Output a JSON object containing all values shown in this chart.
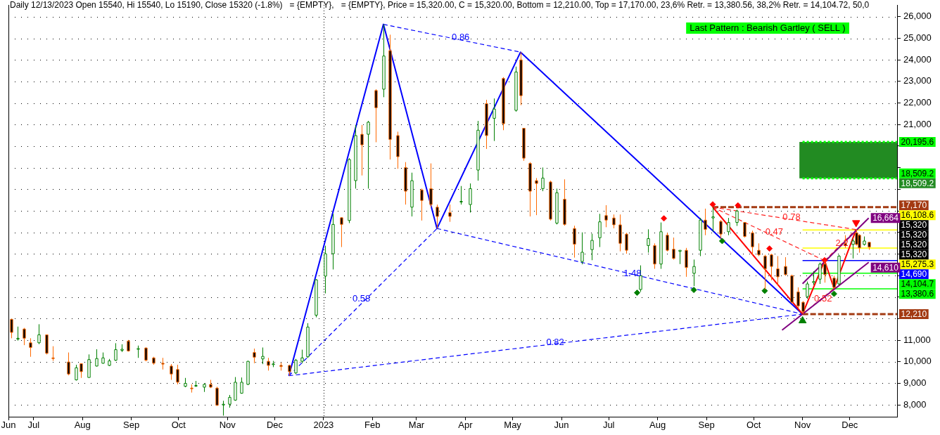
{
  "chart_data": {
    "type": "candlestick",
    "title": "Daily 12/13/2023 Open 15540, Hi 15540, Lo 15190, Close 15320 (-1.8%)   = {EMPTY},   = {EMPTY}, Price = 15,320.00, C = 15,320.00, Bottom = 12,210.00, Top = 17,170.00, 23,6% Retr. = 13,380.56, 38,2% Retr. = 14,104.72, 50,0",
    "x": [
      "2022-06-17",
      "2022-06-21",
      "2022-06-25",
      "2022-06-29",
      "2022-07-04",
      "2022-07-09",
      "2022-07-13",
      "2022-07-23",
      "2022-07-28",
      "2022-07-31",
      "2022-08-05",
      "2022-08-10",
      "2022-08-14",
      "2022-08-18",
      "2022-08-22",
      "2022-08-26",
      "2022-08-30",
      "2022-09-05",
      "2022-09-10",
      "2022-09-15",
      "2022-09-21",
      "2022-09-26",
      "2022-09-30",
      "2022-10-05",
      "2022-10-09",
      "2022-10-12",
      "2022-10-17",
      "2022-10-21",
      "2022-10-25",
      "2022-10-29",
      "2022-11-02",
      "2022-11-06",
      "2022-11-10",
      "2022-11-14",
      "2022-11-18",
      "2022-11-23",
      "2022-11-27",
      "2022-11-30",
      "2022-12-05",
      "2022-12-10",
      "2022-12-14",
      "2022-12-18",
      "2022-12-22",
      "2022-12-27",
      "2023-01-02",
      "2023-01-07",
      "2023-01-12",
      "2023-01-17",
      "2023-01-21",
      "2023-01-25",
      "2023-01-29",
      "2023-02-03",
      "2023-02-08",
      "2023-02-12",
      "2023-02-17",
      "2023-02-22",
      "2023-02-26",
      "2023-03-04",
      "2023-03-10",
      "2023-03-14",
      "2023-03-22",
      "2023-03-29",
      "2023-04-04",
      "2023-04-09",
      "2023-04-14",
      "2023-04-19",
      "2023-04-25",
      "2023-05-03",
      "2023-05-06",
      "2023-05-08",
      "2023-05-12",
      "2023-05-16",
      "2023-05-20",
      "2023-05-25",
      "2023-05-29",
      "2023-06-03",
      "2023-06-09",
      "2023-06-14",
      "2023-06-20",
      "2023-06-25",
      "2023-06-29",
      "2023-07-04",
      "2023-07-08",
      "2023-07-12",
      "2023-07-21",
      "2023-07-26",
      "2023-07-30",
      "2023-08-03",
      "2023-08-07",
      "2023-08-11",
      "2023-08-15",
      "2023-08-19",
      "2023-08-24",
      "2023-08-28",
      "2023-08-31",
      "2023-09-05",
      "2023-09-10",
      "2023-09-15",
      "2023-09-20",
      "2023-09-25",
      "2023-09-30",
      "2023-10-04",
      "2023-10-08",
      "2023-10-12",
      "2023-10-16",
      "2023-10-21",
      "2023-10-25",
      "2023-10-29",
      "2023-11-01",
      "2023-11-04",
      "2023-11-08",
      "2023-11-12",
      "2023-11-15",
      "2023-11-21",
      "2023-11-24",
      "2023-11-28",
      "2023-12-03",
      "2023-12-05",
      "2023-12-07",
      "2023-12-10",
      "2023-12-13"
    ],
    "ohlc": [
      [
        11970,
        12000,
        11090,
        11360
      ],
      [
        11050,
        11630,
        10980,
        11090
      ],
      [
        11520,
        11570,
        10770,
        11090
      ],
      [
        10880,
        11090,
        10230,
        10660
      ],
      [
        10880,
        11740,
        10820,
        11250
      ],
      [
        11250,
        11250,
        10340,
        10390
      ],
      [
        10180,
        10720,
        10040,
        10150
      ],
      [
        9990,
        10430,
        9370,
        9430
      ],
      [
        9160,
        9860,
        9130,
        9720
      ],
      [
        9910,
        9930,
        9250,
        9540
      ],
      [
        9270,
        10340,
        9270,
        10100
      ],
      [
        9800,
        10580,
        9780,
        10150
      ],
      [
        9930,
        10430,
        9910,
        10180
      ],
      [
        9830,
        10130,
        9800,
        10040
      ],
      [
        10070,
        10860,
        10040,
        10560
      ],
      [
        10530,
        10810,
        10450,
        10580
      ],
      [
        10960,
        11010,
        10470,
        10500
      ],
      [
        10580,
        10750,
        10180,
        10610
      ],
      [
        10640,
        10660,
        10020,
        10070
      ],
      [
        10180,
        10230,
        9860,
        9930
      ],
      [
        9930,
        10180,
        9640,
        9890
      ],
      [
        9800,
        9890,
        9160,
        9430
      ],
      [
        9640,
        9860,
        8950,
        9050
      ],
      [
        8860,
        9250,
        8820,
        9000
      ],
      [
        8780,
        8950,
        8570,
        8750
      ],
      [
        8890,
        9110,
        8840,
        8900
      ],
      [
        8820,
        9000,
        8600,
        8950
      ],
      [
        8950,
        9160,
        8780,
        8820
      ],
      [
        8780,
        8840,
        7960,
        7980
      ],
      [
        8000,
        8190,
        7500,
        8030
      ],
      [
        8030,
        8460,
        7870,
        8350
      ],
      [
        8220,
        9290,
        8190,
        9050
      ],
      [
        8540,
        9270,
        8520,
        9050
      ],
      [
        8950,
        10040,
        8920,
        10020
      ],
      [
        10430,
        10610,
        9930,
        10210
      ],
      [
        10130,
        10660,
        9890,
        10250
      ],
      [
        10020,
        10180,
        9590,
        9830
      ],
      [
        9890,
        10040,
        9750,
        9900
      ],
      [
        9830,
        9960,
        9590,
        9780
      ],
      [
        9830,
        9860,
        9350,
        9540
      ],
      [
        9480,
        10130,
        9430,
        10070
      ],
      [
        10020,
        10560,
        9930,
        10180
      ],
      [
        10230,
        11790,
        10180,
        11610
      ],
      [
        12160,
        13830,
        12060,
        13800
      ],
      [
        13970,
        15380,
        13170,
        15010
      ],
      [
        15010,
        16860,
        14280,
        16370
      ],
      [
        16680,
        16700,
        15320,
        16370
      ],
      [
        16550,
        19440,
        16430,
        19380
      ],
      [
        18400,
        20980,
        18030,
        20490
      ],
      [
        20550,
        20980,
        18640,
        20060
      ],
      [
        20550,
        21170,
        18030,
        21110
      ],
      [
        22580,
        22640,
        20180,
        21780
      ],
      [
        22640,
        25650,
        22270,
        24180
      ],
      [
        24430,
        25170,
        19380,
        20310
      ],
      [
        20490,
        20670,
        18950,
        19510
      ],
      [
        19010,
        19260,
        17290,
        17910
      ],
      [
        17170,
        18770,
        16740,
        18400
      ],
      [
        17970,
        18030,
        16550,
        17480
      ],
      [
        18030,
        19200,
        17170,
        17290
      ],
      [
        17170,
        17290,
        16180,
        16740
      ],
      [
        16920,
        17290,
        16490,
        16740
      ],
      [
        17410,
        18150,
        17290,
        17440
      ],
      [
        17290,
        18270,
        16920,
        18030
      ],
      [
        18890,
        21170,
        18400,
        20740
      ],
      [
        21970,
        22150,
        19870,
        20490
      ],
      [
        21290,
        22210,
        20240,
        21720
      ],
      [
        23140,
        23200,
        20740,
        21040
      ],
      [
        21660,
        23690,
        21600,
        23440
      ],
      [
        24000,
        24360,
        21900,
        22340
      ],
      [
        20830,
        20830,
        19320,
        19440
      ],
      [
        19200,
        19260,
        16740,
        17910
      ],
      [
        18400,
        18520,
        16800,
        18270
      ],
      [
        18030,
        19010,
        17910,
        18520
      ],
      [
        18340,
        18400,
        16550,
        16610
      ],
      [
        16430,
        18030,
        16370,
        17840
      ],
      [
        17540,
        18460,
        16310,
        16370
      ],
      [
        16180,
        16310,
        14830,
        15450
      ],
      [
        14650,
        16000,
        14520,
        15080
      ],
      [
        15200,
        15940,
        14710,
        15630
      ],
      [
        15750,
        16860,
        15320,
        16490
      ],
      [
        16780,
        17260,
        16240,
        16570
      ],
      [
        16670,
        16830,
        16190,
        16350
      ],
      [
        16350,
        16830,
        15120,
        15490
      ],
      [
        15920,
        15980,
        15010,
        15170
      ],
      [
        13350,
        14470,
        13240,
        13990
      ],
      [
        15390,
        16140,
        15060,
        15710
      ],
      [
        15390,
        15490,
        14310,
        14530
      ],
      [
        14530,
        16460,
        14310,
        16030
      ],
      [
        15870,
        15980,
        15120,
        15170
      ],
      [
        15220,
        15760,
        14740,
        14790
      ],
      [
        15120,
        15170,
        14530,
        15170
      ],
      [
        15170,
        15280,
        13940,
        14370
      ],
      [
        14100,
        14740,
        13510,
        14420
      ],
      [
        15170,
        16670,
        14900,
        16570
      ],
      [
        16570,
        17100,
        15870,
        16140
      ],
      [
        16670,
        17170,
        16030,
        16720
      ],
      [
        16510,
        16570,
        15710,
        15920
      ],
      [
        16030,
        16670,
        15870,
        16460
      ],
      [
        16460,
        17050,
        16300,
        16990
      ],
      [
        16460,
        16460,
        15760,
        15810
      ],
      [
        15980,
        16080,
        14960,
        15330
      ],
      [
        15170,
        15490,
        14900,
        14960
      ],
      [
        14900,
        14960,
        13350,
        14310
      ],
      [
        14960,
        15010,
        13780,
        14420
      ],
      [
        14310,
        14900,
        13560,
        13940
      ],
      [
        14420,
        14850,
        13990,
        14040
      ],
      [
        13990,
        14040,
        12700,
        12760
      ],
      [
        13240,
        13450,
        12490,
        12590
      ],
      [
        12760,
        12810,
        12210,
        12330
      ],
      [
        13020,
        13720,
        12920,
        13610
      ],
      [
        13670,
        14200,
        13560,
        13720
      ],
      [
        13830,
        14600,
        13610,
        14530
      ],
      [
        14530,
        14690,
        13670,
        14040
      ],
      [
        13880,
        13990,
        13400,
        13450
      ],
      [
        13610,
        14960,
        13560,
        14900
      ],
      [
        15490,
        15870,
        15280,
        15390
      ],
      [
        15440,
        15710,
        14790,
        15600
      ],
      [
        15980,
        16130,
        15390,
        15440
      ],
      [
        15870,
        15920,
        15060,
        15280
      ],
      [
        15440,
        15810,
        15390,
        15600
      ],
      [
        15540,
        15540,
        15190,
        15320
      ]
    ],
    "series": [
      {
        "type": "line",
        "color": "#00ff00",
        "line_style": "dotted",
        "x": [
          "2023-11-01",
          "2023-12-31"
        ],
        "values": [
          20195.6,
          20195.6
        ],
        "value_labels": [
          null,
          "20,195.6"
        ]
      },
      {
        "type": "line",
        "color": "#00ff00",
        "line_style": "dotted",
        "x": [
          "2023-11-01",
          "2023-12-31"
        ],
        "values": [
          18509.2,
          18509.2
        ],
        "value_labels": [
          null,
          "18,509.2"
        ]
      },
      {
        "type": "line",
        "color": "#a33a12",
        "line_style": "dashed",
        "x": [
          "2023-09-05",
          "2023-12-31"
        ],
        "values": [
          17170,
          17170
        ],
        "value_labels": [
          null,
          "17,170"
        ]
      },
      {
        "type": "line",
        "color": "#ffff00",
        "line_style": "solid",
        "x": [
          "2023-11-01",
          "2023-12-31"
        ],
        "values": [
          16108.6,
          16108.6
        ],
        "value_labels": [
          null,
          "16,108.6"
        ]
      },
      {
        "type": "line",
        "color": "#ffff00",
        "line_style": "solid",
        "x": [
          "2023-11-01",
          "2023-12-31"
        ],
        "values": [
          15275.3,
          15275.3
        ],
        "value_labels": [
          null,
          "15,275.3"
        ]
      },
      {
        "type": "line",
        "color": "#0000ff",
        "line_style": "solid",
        "x": [
          "2023-11-01",
          "2023-12-31"
        ],
        "values": [
          14690,
          14690
        ],
        "value_labels": [
          null,
          "14,690"
        ]
      },
      {
        "type": "line",
        "color": "#00ff00",
        "line_style": "solid",
        "x": [
          "2023-11-01",
          "2023-12-31"
        ],
        "values": [
          14104.7,
          14104.7
        ],
        "value_labels": [
          null,
          "14,104.7"
        ]
      },
      {
        "type": "line",
        "color": "#00ff00",
        "line_style": "solid",
        "x": [
          "2023-11-01",
          "2023-12-31"
        ],
        "values": [
          13380.6,
          13380.6
        ],
        "value_labels": [
          null,
          "13,380.6"
        ]
      },
      {
        "type": "line",
        "color": "#a33a12",
        "line_style": "dashed",
        "x": [
          "2023-11-01",
          "2023-12-31"
        ],
        "values": [
          12210,
          12210
        ],
        "value_labels": [
          null,
          "12,210"
        ]
      },
      {
        "type": "line",
        "color": "#0000ff",
        "line_style": "dashed",
        "x": [
          "2022-12-10",
          "2023-03-14"
        ],
        "values": [
          9350,
          16180
        ]
      },
      {
        "type": "line",
        "color": "#0000ff",
        "line_style": "dashed",
        "x": [
          "2023-02-08",
          "2023-05-06"
        ],
        "values": [
          25650,
          24360
        ]
      },
      {
        "type": "line",
        "color": "#0000ff",
        "line_style": "dashed",
        "x": [
          "2023-03-14",
          "2023-11-01"
        ],
        "values": [
          16180,
          12210
        ]
      },
      {
        "type": "line",
        "color": "#0000ff",
        "line_style": "dashed",
        "x": [
          "2022-12-10",
          "2023-11-01"
        ],
        "values": [
          9350,
          12210
        ]
      },
      {
        "type": "line",
        "color": "#0000ff",
        "line_style": "solid",
        "x": [
          "2022-12-10",
          "2023-02-08",
          "2023-03-14",
          "2023-05-06",
          "2023-11-01"
        ],
        "values": [
          9350,
          25650,
          16180,
          24360,
          12210
        ]
      },
      {
        "type": "line",
        "color": "#ff2020",
        "line_style": "dashed",
        "x": [
          "2023-09-05",
          "2023-11-15"
        ],
        "values": [
          17170,
          14690
        ]
      },
      {
        "type": "line",
        "color": "#ff2020",
        "line_style": "dashed",
        "x": [
          "2023-11-01",
          "2023-11-21"
        ],
        "values": [
          12210,
          13400
        ]
      },
      {
        "type": "line",
        "color": "#ff2020",
        "line_style": "dashed",
        "x": [
          "2023-11-15",
          "2023-12-05"
        ],
        "values": [
          14690,
          16130
        ]
      },
      {
        "type": "line",
        "color": "#ff2020",
        "line_style": "dashed",
        "x": [
          "2023-09-05",
          "2023-12-05"
        ],
        "values": [
          17170,
          16130
        ]
      },
      {
        "type": "line",
        "color": "#ff0000",
        "line_style": "solid",
        "x": [
          "2023-09-05",
          "2023-11-01",
          "2023-11-15",
          "2023-11-21",
          "2023-12-05"
        ],
        "values": [
          17170,
          12210,
          14690,
          13400,
          16130
        ]
      },
      {
        "type": "line",
        "color": "#800080",
        "line_style": "solid",
        "x": [
          "2023-11-01",
          "2023-12-13"
        ],
        "values": [
          13620,
          16664
        ],
        "value_labels": [
          null,
          "16,664"
        ]
      },
      {
        "type": "line",
        "color": "#800080",
        "line_style": "solid",
        "x": [
          "2023-10-19",
          "2023-12-13"
        ],
        "values": [
          11470,
          14610
        ],
        "value_labels": [
          null,
          "14,610"
        ]
      },
      {
        "type": "scatter",
        "color": "#ff0000",
        "marker": "diamond",
        "x": [
          "2023-08-05",
          "2023-09-05",
          "2023-09-21",
          "2023-10-11",
          "2023-11-15"
        ],
        "values": [
          16650,
          17300,
          17250,
          15250,
          14710
        ]
      },
      {
        "type": "scatter",
        "color": "#008000",
        "marker": "diamond",
        "x": [
          "2023-07-19",
          "2023-08-24",
          "2023-09-11",
          "2023-10-08",
          "2023-11-21"
        ],
        "values": [
          13200,
          13330,
          15600,
          13290,
          13150
        ]
      },
      {
        "type": "scatter",
        "color": "#008000",
        "marker": "triangle",
        "x": [
          "2023-11-01"
        ],
        "values": [
          11900
        ]
      },
      {
        "type": "scatter",
        "color": "#ff0000",
        "marker": "triangle",
        "x": [
          "2023-12-05"
        ],
        "values": [
          16450
        ]
      }
    ],
    "xlim": [
      "2022-06-15",
      "2023-12-31"
    ],
    "xticks": [
      {
        "value": "2022-06-15",
        "label": "Jun"
      },
      {
        "value": "2022-07-01",
        "label": "Jul"
      },
      {
        "value": "2022-08-01",
        "label": "Aug"
      },
      {
        "value": "2022-09-01",
        "label": "Sep"
      },
      {
        "value": "2022-10-01",
        "label": "Oct"
      },
      {
        "value": "2022-11-01",
        "label": "Nov"
      },
      {
        "value": "2022-12-01",
        "label": "Dec"
      },
      {
        "value": "2023-01-01",
        "label": "2023"
      },
      {
        "value": "2023-02-01",
        "label": "Feb"
      },
      {
        "value": "2023-03-01",
        "label": "Mar"
      },
      {
        "value": "2023-04-01",
        "label": "Apr"
      },
      {
        "value": "2023-05-01",
        "label": "May"
      },
      {
        "value": "2023-06-01",
        "label": "Jun"
      },
      {
        "value": "2023-07-01",
        "label": "Jul"
      },
      {
        "value": "2023-08-01",
        "label": "Aug"
      },
      {
        "value": "2023-09-01",
        "label": "Sep"
      },
      {
        "value": "2023-10-01",
        "label": "Oct"
      },
      {
        "value": "2023-11-01",
        "label": "Nov"
      },
      {
        "value": "2023-12-01",
        "label": "Dec"
      }
    ],
    "ylim": [
      7450,
      26550
    ],
    "yticks": [
      {
        "value": 8000,
        "label": "8,000"
      },
      {
        "value": 9000,
        "label": "9,000"
      },
      {
        "value": 10000,
        "label": "10,000"
      },
      {
        "value": 11000,
        "label": "11,000"
      },
      {
        "value": 12000,
        "label": null
      },
      {
        "value": 13000,
        "label": null
      },
      {
        "value": 14000,
        "label": null
      },
      {
        "value": 15000,
        "label": null
      },
      {
        "value": 16000,
        "label": null
      },
      {
        "value": 17000,
        "label": null
      },
      {
        "value": 18000,
        "label": null
      },
      {
        "value": 19000,
        "label": null
      },
      {
        "value": 20000,
        "label": null
      },
      {
        "value": 21000,
        "label": "21,000"
      },
      {
        "value": 22000,
        "label": "22,000"
      },
      {
        "value": 23000,
        "label": "23,000"
      },
      {
        "value": 24000,
        "label": "24,000"
      },
      {
        "value": 25000,
        "label": "25,000"
      },
      {
        "value": 26000,
        "label": "26,000"
      }
    ],
    "grid": "y",
    "ref_lines": [
      {
        "axis": "x",
        "value": "2023-01-01",
        "color": "#000000",
        "line_style": "dotted"
      }
    ],
    "bands": [
      {
        "axis": "y",
        "from": 18509.2,
        "to": 20195.6,
        "label": "18,509.2",
        "color": "#228b22"
      }
    ],
    "annotations": [
      "Last Pattern : Bearish Gartley ( SELL )",
      {
        "text": "0.86",
        "x": "2023-03-29",
        "y": 25050
      },
      {
        "text": "0.58",
        "x": "2023-01-25",
        "y": 12900
      },
      {
        "text": "1.48",
        "x": "2023-07-16",
        "y": 14100
      },
      {
        "text": "0.82",
        "x": "2023-05-28",
        "y": 10900
      },
      {
        "text": "0.78",
        "x": "2023-10-25",
        "y": 16700
      },
      {
        "text": "0.47",
        "x": "2023-10-14",
        "y": 16000
      },
      {
        "text": "0.52",
        "x": "2023-11-14",
        "y": 12900
      },
      {
        "text": "2.2",
        "x": "2023-11-26",
        "y": 15500
      },
      "15,320",
      "15,320",
      "15,320",
      "15,320"
    ]
  }
}
